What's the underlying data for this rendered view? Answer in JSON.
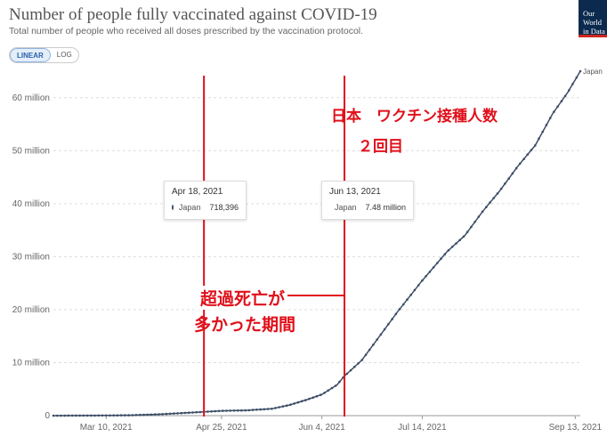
{
  "header": {
    "title": "Number of people fully vaccinated against COVID-19",
    "subtitle": "Total number of people who received all doses prescribed by the vaccination protocol.",
    "logo_text": "Our World in Data"
  },
  "controls": {
    "linear_label": "LINEAR",
    "log_label": "LOG"
  },
  "tooltips": [
    {
      "date": "Apr 18, 2021",
      "country": "Japan",
      "value_text": "718,396"
    },
    {
      "date": "Jun 13, 2021",
      "country": "Japan",
      "value_text": "7.48 million"
    }
  ],
  "annotations": {
    "top_line1": "日本　ワクチン接種人数",
    "top_line2": "２回目",
    "period_line1": "超過死亡が",
    "period_line2": "多かった期間"
  },
  "colors": {
    "series": "#3c4d67",
    "annotation": "#e0101b",
    "grid": "#dddddd"
  },
  "chart_data": {
    "type": "line",
    "title": "Number of people fully vaccinated against COVID-19",
    "subtitle": "Total number of people who received all doses prescribed by the vaccination protocol.",
    "xlabel": "",
    "ylabel": "",
    "x_start": "2021-02-17",
    "x_end": "2021-09-15",
    "ylim": [
      0,
      65000000
    ],
    "y_ticks": [
      0,
      10000000,
      20000000,
      30000000,
      40000000,
      50000000,
      60000000
    ],
    "y_tick_labels": [
      "0",
      "10 million",
      "20 million",
      "30 million",
      "40 million",
      "50 million",
      "60 million"
    ],
    "x_ticks": [
      "2021-03-10",
      "2021-04-25",
      "2021-06-04",
      "2021-07-14",
      "2021-09-13"
    ],
    "x_tick_labels": [
      "Mar 10, 2021",
      "Apr 25, 2021",
      "Jun 4, 2021",
      "Jul 14, 2021",
      "Sep 13, 2021"
    ],
    "grid": true,
    "series": [
      {
        "name": "Japan",
        "points": [
          [
            "2021-02-17",
            0
          ],
          [
            "2021-03-10",
            30000
          ],
          [
            "2021-03-20",
            80000
          ],
          [
            "2021-03-31",
            250000
          ],
          [
            "2021-04-10",
            500000
          ],
          [
            "2021-04-18",
            718396
          ],
          [
            "2021-04-25",
            900000
          ],
          [
            "2021-05-05",
            1000000
          ],
          [
            "2021-05-15",
            1300000
          ],
          [
            "2021-05-22",
            2000000
          ],
          [
            "2021-05-29",
            3000000
          ],
          [
            "2021-06-04",
            4000000
          ],
          [
            "2021-06-10",
            5800000
          ],
          [
            "2021-06-13",
            7480000
          ],
          [
            "2021-06-20",
            10500000
          ],
          [
            "2021-06-27",
            15000000
          ],
          [
            "2021-07-04",
            19500000
          ],
          [
            "2021-07-14",
            25500000
          ],
          [
            "2021-07-24",
            31000000
          ],
          [
            "2021-07-31",
            34000000
          ],
          [
            "2021-08-07",
            38500000
          ],
          [
            "2021-08-14",
            42500000
          ],
          [
            "2021-08-21",
            47000000
          ],
          [
            "2021-08-28",
            51000000
          ],
          [
            "2021-09-04",
            57000000
          ],
          [
            "2021-09-10",
            61000000
          ],
          [
            "2021-09-15",
            65000000
          ]
        ]
      }
    ],
    "highlight_dates": [
      "2021-04-18",
      "2021-06-13"
    ]
  }
}
